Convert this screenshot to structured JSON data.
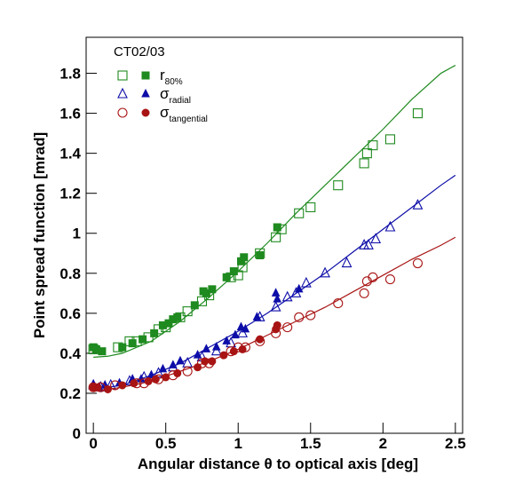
{
  "chart_data": {
    "type": "scatter",
    "legend_title": "CT02/03",
    "xlabel": "Angular distance θ to optical axis [deg]",
    "ylabel": "Point spread function [mrad]",
    "xlim": [
      -0.05,
      2.55
    ],
    "ylim": [
      0,
      1.98
    ],
    "xticks": [
      0,
      0.5,
      1,
      1.5,
      2,
      2.5
    ],
    "yticks": [
      0,
      0.2,
      0.4,
      0.6,
      0.8,
      1,
      1.2,
      1.4,
      1.6,
      1.8
    ],
    "legend": "top-left",
    "series": [
      {
        "name": "r",
        "name_sub": "80%",
        "color": "#1f8a1f",
        "marker": "square",
        "open": {
          "x": [
            0.0,
            0.17,
            0.25,
            0.3,
            0.38,
            0.45,
            0.5,
            0.6,
            0.65,
            0.75,
            0.8,
            0.95,
            1.0,
            1.03,
            1.15,
            1.26,
            1.3,
            1.42,
            1.5,
            1.69,
            1.87,
            1.89,
            1.93,
            2.05,
            2.24
          ],
          "values": [
            0.42,
            0.43,
            0.46,
            0.46,
            0.48,
            0.52,
            0.53,
            0.58,
            0.61,
            0.66,
            0.69,
            0.78,
            0.79,
            0.83,
            0.9,
            0.98,
            1.02,
            1.1,
            1.13,
            1.24,
            1.35,
            1.4,
            1.44,
            1.47,
            1.6
          ]
        },
        "filled": {
          "x": [
            0.0,
            0.02,
            0.06,
            0.2,
            0.27,
            0.34,
            0.42,
            0.48,
            0.52,
            0.55,
            0.58,
            0.7,
            0.76,
            0.78,
            0.82,
            0.92,
            0.97,
            1.02,
            1.04,
            1.15,
            1.27
          ],
          "values": [
            0.43,
            0.42,
            0.41,
            0.43,
            0.45,
            0.47,
            0.5,
            0.54,
            0.55,
            0.57,
            0.58,
            0.64,
            0.71,
            0.7,
            0.72,
            0.78,
            0.81,
            0.86,
            0.88,
            0.89,
            1.03
          ]
        },
        "fit": {
          "x": [
            0,
            0.1,
            0.2,
            0.4,
            0.6,
            0.8,
            1.0,
            1.2,
            1.4,
            1.6,
            1.8,
            2.0,
            2.2,
            2.4,
            2.5
          ],
          "values": [
            0.38,
            0.385,
            0.4,
            0.46,
            0.56,
            0.68,
            0.81,
            0.95,
            1.1,
            1.24,
            1.38,
            1.52,
            1.67,
            1.8,
            1.84
          ]
        }
      },
      {
        "name": "σ",
        "name_sub": "radial",
        "color": "#0d0da8",
        "marker": "triangle",
        "open": {
          "x": [
            0.0,
            0.05,
            0.12,
            0.25,
            0.35,
            0.45,
            0.55,
            0.65,
            0.75,
            0.85,
            0.95,
            1.03,
            1.15,
            1.26,
            1.34,
            1.4,
            1.47,
            1.6,
            1.75,
            1.87,
            1.9,
            1.95,
            2.05,
            2.24
          ],
          "values": [
            0.24,
            0.23,
            0.24,
            0.26,
            0.28,
            0.3,
            0.33,
            0.35,
            0.38,
            0.41,
            0.45,
            0.5,
            0.58,
            0.63,
            0.68,
            0.7,
            0.75,
            0.8,
            0.85,
            0.94,
            0.94,
            0.97,
            1.03,
            1.14
          ]
        },
        "filled": {
          "x": [
            0.0,
            0.04,
            0.08,
            0.18,
            0.27,
            0.33,
            0.4,
            0.48,
            0.55,
            0.6,
            0.72,
            0.78,
            0.85,
            0.92,
            0.98,
            1.02,
            1.05,
            1.13,
            1.26,
            1.27,
            1.42
          ],
          "values": [
            0.24,
            0.23,
            0.24,
            0.25,
            0.27,
            0.27,
            0.29,
            0.32,
            0.34,
            0.36,
            0.39,
            0.42,
            0.43,
            0.46,
            0.49,
            0.53,
            0.52,
            0.58,
            0.7,
            0.67,
            0.72
          ]
        },
        "fit": {
          "x": [
            0,
            0.2,
            0.4,
            0.6,
            0.8,
            1.0,
            1.2,
            1.4,
            1.6,
            1.8,
            2.0,
            2.2,
            2.4,
            2.5
          ],
          "values": [
            0.22,
            0.24,
            0.29,
            0.35,
            0.43,
            0.51,
            0.6,
            0.7,
            0.8,
            0.91,
            1.02,
            1.13,
            1.24,
            1.29
          ]
        }
      },
      {
        "name": "σ",
        "name_sub": "tangential",
        "color": "#a81414",
        "marker": "circle",
        "open": {
          "x": [
            0.0,
            0.05,
            0.15,
            0.3,
            0.35,
            0.45,
            0.55,
            0.65,
            0.75,
            0.8,
            0.95,
            1.0,
            1.05,
            1.15,
            1.26,
            1.34,
            1.42,
            1.5,
            1.69,
            1.87,
            1.89,
            1.93,
            2.05,
            2.24
          ],
          "values": [
            0.23,
            0.23,
            0.24,
            0.25,
            0.25,
            0.27,
            0.29,
            0.31,
            0.35,
            0.35,
            0.41,
            0.43,
            0.43,
            0.46,
            0.5,
            0.53,
            0.58,
            0.59,
            0.65,
            0.7,
            0.76,
            0.78,
            0.77,
            0.85
          ]
        },
        "filled": {
          "x": [
            0.0,
            0.03,
            0.1,
            0.2,
            0.28,
            0.38,
            0.43,
            0.5,
            0.58,
            0.72,
            0.77,
            0.82,
            0.9,
            0.97,
            1.03,
            1.15,
            1.26,
            1.27
          ],
          "values": [
            0.23,
            0.23,
            0.22,
            0.24,
            0.25,
            0.26,
            0.27,
            0.28,
            0.3,
            0.33,
            0.36,
            0.36,
            0.39,
            0.41,
            0.42,
            0.47,
            0.52,
            0.54
          ]
        },
        "fit": {
          "x": [
            0,
            0.2,
            0.4,
            0.6,
            0.8,
            1.0,
            1.2,
            1.4,
            1.6,
            1.8,
            2.0,
            2.2,
            2.4,
            2.5
          ],
          "values": [
            0.21,
            0.23,
            0.26,
            0.31,
            0.36,
            0.42,
            0.49,
            0.56,
            0.63,
            0.71,
            0.79,
            0.87,
            0.94,
            0.98
          ]
        }
      }
    ]
  }
}
